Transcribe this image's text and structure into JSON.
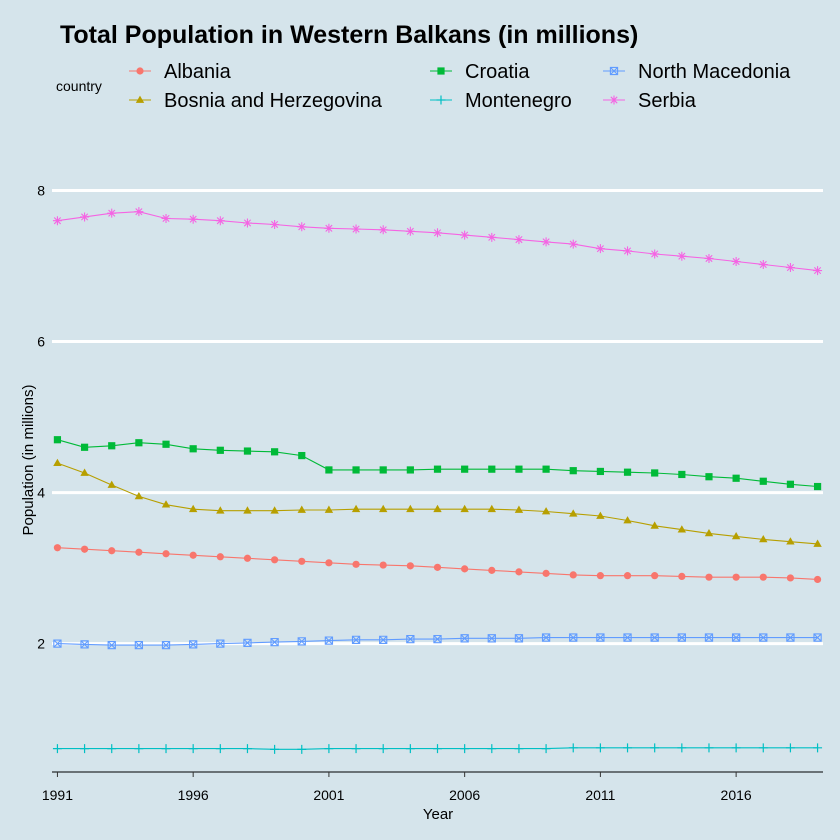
{
  "chart_data": {
    "type": "line",
    "title": "Total Population in Western Balkans (in millions)",
    "xlabel": "Year",
    "ylabel": "Population (in millions)",
    "legend_title": "country",
    "legend_position": "top",
    "grid": "major horizontal",
    "xlim": [
      1990.8,
      2019.2
    ],
    "ylim": [
      0.3,
      9.0
    ],
    "x_ticks": [
      1991,
      1996,
      2001,
      2006,
      2011,
      2016
    ],
    "y_ticks": [
      2,
      4,
      6,
      8
    ],
    "x": [
      1991,
      1992,
      1993,
      1994,
      1995,
      1996,
      1997,
      1998,
      1999,
      2000,
      2001,
      2002,
      2003,
      2004,
      2005,
      2006,
      2007,
      2008,
      2009,
      2010,
      2011,
      2012,
      2013,
      2014,
      2015,
      2016,
      2017,
      2018,
      2019
    ],
    "series": [
      {
        "name": "Albania",
        "color": "#f8766d",
        "marker": "circle",
        "values": [
          3.27,
          3.25,
          3.23,
          3.21,
          3.19,
          3.17,
          3.15,
          3.13,
          3.11,
          3.09,
          3.07,
          3.05,
          3.04,
          3.03,
          3.01,
          2.99,
          2.97,
          2.95,
          2.93,
          2.91,
          2.9,
          2.9,
          2.9,
          2.89,
          2.88,
          2.88,
          2.88,
          2.87,
          2.85
        ]
      },
      {
        "name": "Bosnia and Herzegovina",
        "color": "#b79f00",
        "marker": "triangle",
        "values": [
          4.39,
          4.26,
          4.1,
          3.95,
          3.84,
          3.78,
          3.76,
          3.76,
          3.76,
          3.77,
          3.77,
          3.78,
          3.78,
          3.78,
          3.78,
          3.78,
          3.78,
          3.77,
          3.75,
          3.72,
          3.69,
          3.63,
          3.56,
          3.51,
          3.46,
          3.42,
          3.38,
          3.35,
          3.32
        ]
      },
      {
        "name": "Croatia",
        "color": "#00ba38",
        "marker": "square",
        "values": [
          4.7,
          4.6,
          4.62,
          4.66,
          4.64,
          4.58,
          4.56,
          4.55,
          4.54,
          4.49,
          4.3,
          4.3,
          4.3,
          4.3,
          4.31,
          4.31,
          4.31,
          4.31,
          4.31,
          4.29,
          4.28,
          4.27,
          4.26,
          4.24,
          4.21,
          4.19,
          4.15,
          4.11,
          4.08
        ]
      },
      {
        "name": "Montenegro",
        "color": "#00bfc4",
        "marker": "plus",
        "values": [
          0.61,
          0.61,
          0.61,
          0.61,
          0.61,
          0.61,
          0.61,
          0.61,
          0.6,
          0.6,
          0.61,
          0.61,
          0.61,
          0.61,
          0.61,
          0.61,
          0.61,
          0.61,
          0.61,
          0.62,
          0.62,
          0.62,
          0.62,
          0.62,
          0.62,
          0.62,
          0.62,
          0.62,
          0.62
        ]
      },
      {
        "name": "North Macedonia",
        "color": "#619cff",
        "marker": "square-x",
        "values": [
          2.0,
          1.99,
          1.98,
          1.98,
          1.98,
          1.99,
          2.0,
          2.01,
          2.02,
          2.03,
          2.04,
          2.05,
          2.05,
          2.06,
          2.06,
          2.07,
          2.07,
          2.07,
          2.08,
          2.08,
          2.08,
          2.08,
          2.08,
          2.08,
          2.08,
          2.08,
          2.08,
          2.08,
          2.08
        ]
      },
      {
        "name": "Serbia",
        "color": "#f564e3",
        "marker": "asterisk",
        "values": [
          7.6,
          7.65,
          7.7,
          7.72,
          7.63,
          7.62,
          7.6,
          7.57,
          7.55,
          7.52,
          7.5,
          7.49,
          7.48,
          7.46,
          7.44,
          7.41,
          7.38,
          7.35,
          7.32,
          7.29,
          7.23,
          7.2,
          7.16,
          7.13,
          7.1,
          7.06,
          7.02,
          6.98,
          6.94
        ]
      }
    ]
  }
}
